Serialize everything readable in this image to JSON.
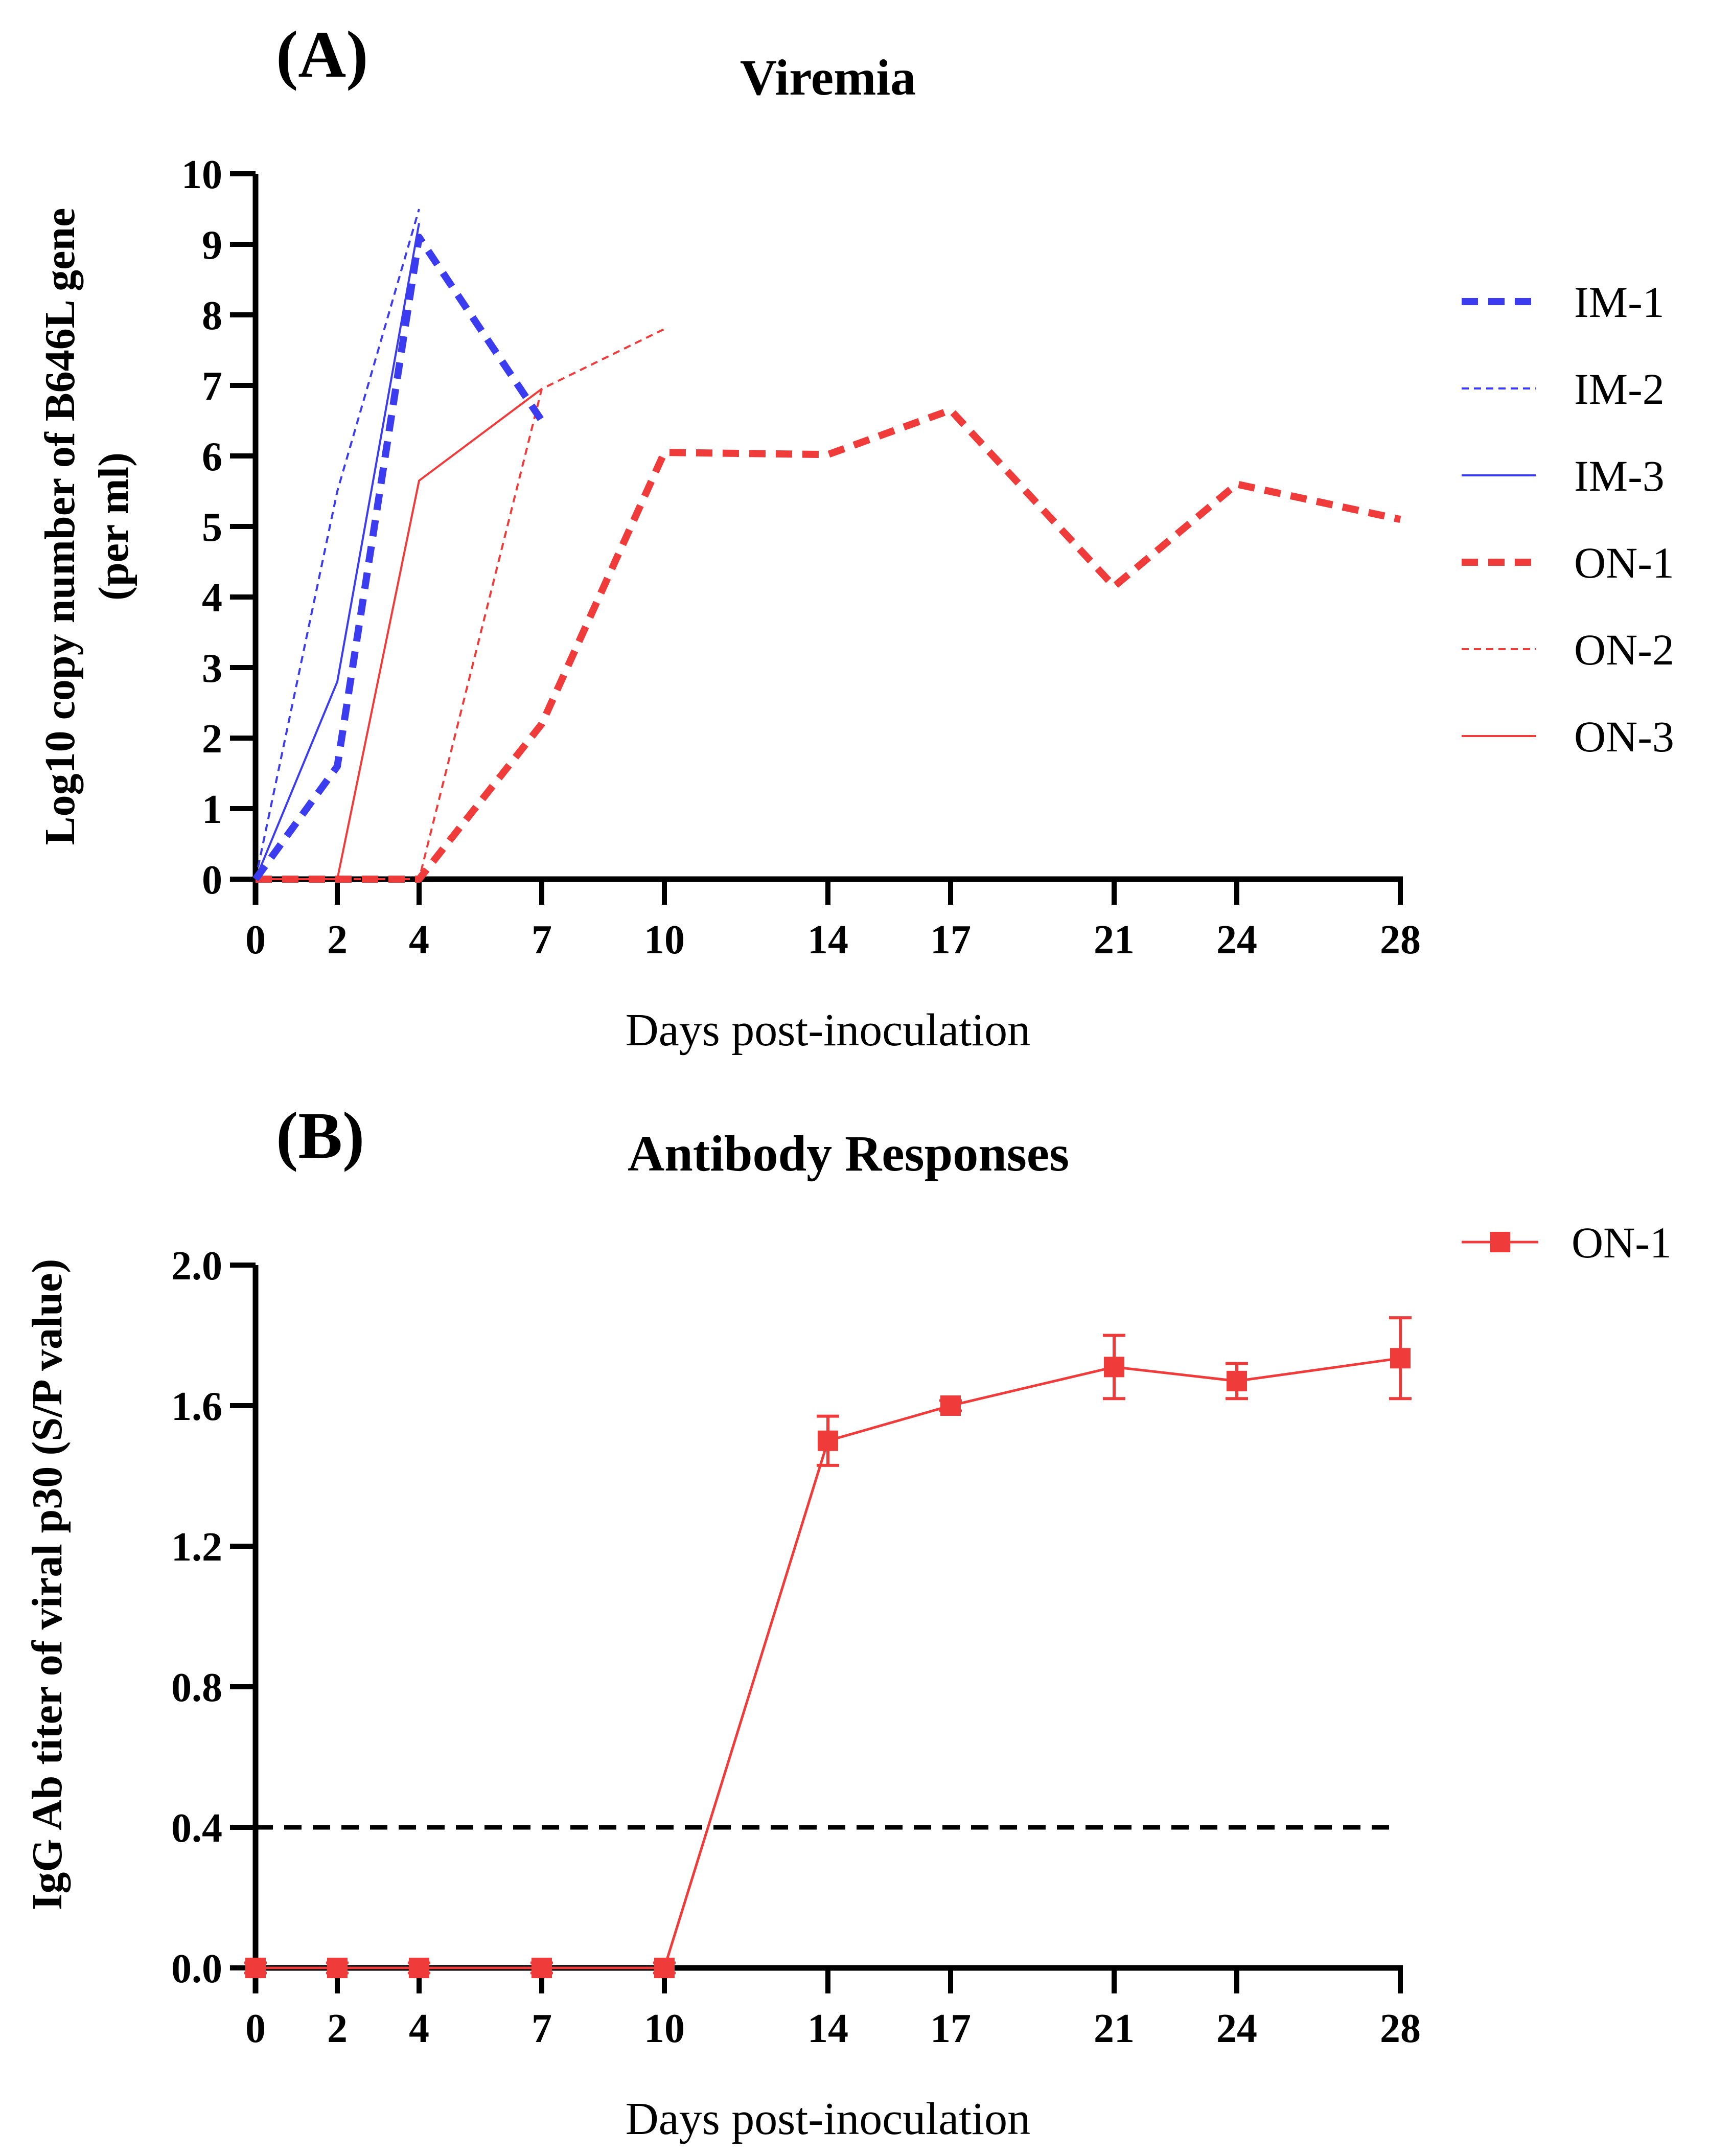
{
  "chart_data": [
    {
      "type": "line",
      "panel": "(A)",
      "title": "Viremia",
      "xlabel": "Days post-inoculation",
      "ylabel": "Log10 copy number of B646L gene",
      "ylabel_sub": "(per ml)",
      "xticks": [
        0,
        2,
        4,
        7,
        10,
        14,
        17,
        21,
        24,
        28
      ],
      "xlim": [
        0,
        28
      ],
      "yticks": [
        0,
        1,
        2,
        3,
        4,
        5,
        6,
        7,
        8,
        9,
        10
      ],
      "ylim": [
        0,
        10
      ],
      "grid": false,
      "legend_position": "right",
      "series": [
        {
          "name": "IM-1",
          "color": "#3b3bf0",
          "style": "dashed-thick",
          "x": [
            0,
            2,
            4,
            7
          ],
          "y": [
            0,
            1.6,
            9.1,
            6.5
          ]
        },
        {
          "name": "IM-2",
          "color": "#3b3bf0",
          "style": "dashed-thin",
          "x": [
            0,
            2,
            4
          ],
          "y": [
            0,
            5.5,
            9.5
          ]
        },
        {
          "name": "IM-3",
          "color": "#3b3bf0",
          "style": "solid",
          "x": [
            0,
            2,
            4
          ],
          "y": [
            0,
            2.8,
            9.3
          ]
        },
        {
          "name": "ON-1",
          "color": "#f03b3b",
          "style": "dashed-thick",
          "x": [
            0,
            2,
            4,
            7,
            10,
            14,
            17,
            21,
            24,
            28
          ],
          "y": [
            0,
            0,
            0,
            2.2,
            6.05,
            6.02,
            6.65,
            4.15,
            5.6,
            5.1
          ]
        },
        {
          "name": "ON-2",
          "color": "#f03b3b",
          "style": "dashed-thin",
          "x": [
            0,
            2,
            4,
            7,
            10
          ],
          "y": [
            0,
            0,
            0,
            6.95,
            7.8
          ]
        },
        {
          "name": "ON-3",
          "color": "#f03b3b",
          "style": "solid",
          "x": [
            0,
            2,
            4,
            7
          ],
          "y": [
            0,
            0,
            5.65,
            6.95
          ]
        }
      ]
    },
    {
      "type": "line",
      "panel": "(B)",
      "title": "Antibody Responses",
      "xlabel": "Days post-inoculation",
      "ylabel": "IgG Ab titer of viral p30 (S/P value)",
      "xticks": [
        0,
        2,
        4,
        7,
        10,
        14,
        17,
        21,
        24,
        28
      ],
      "xlim": [
        0,
        28
      ],
      "yticks": [
        "0.0",
        "0.4",
        "0.8",
        "1.2",
        "1.6",
        "2.0"
      ],
      "ylim": [
        0,
        2.0
      ],
      "cutoff": 0.4,
      "grid": false,
      "legend_position": "top-right",
      "series": [
        {
          "name": "ON-1",
          "color": "#f03b3b",
          "marker": "square",
          "x": [
            0,
            2,
            4,
            7,
            10,
            14,
            17,
            21,
            24,
            28
          ],
          "y": [
            0,
            0,
            0,
            0,
            0,
            1.5,
            1.6,
            1.71,
            1.67,
            1.735
          ],
          "err": [
            0.01,
            0.01,
            0.01,
            0.01,
            0.01,
            0.07,
            0.01,
            0.09,
            0.05,
            0.115
          ]
        }
      ]
    }
  ]
}
